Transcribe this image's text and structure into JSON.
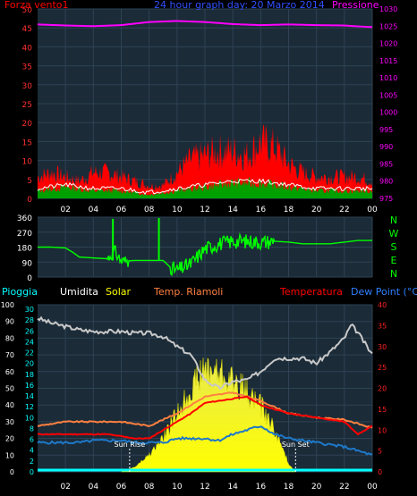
{
  "chart_data": [
    {
      "type": "line",
      "title": "24 hour graph day: 20 Marzo 2014",
      "left_axis_label": "Forza vento1",
      "right_axis_label": "Pressione",
      "left_ticks": [
        0,
        5,
        10,
        15,
        20,
        25,
        30,
        35,
        40,
        45,
        50
      ],
      "right_ticks": [
        975,
        980,
        985,
        990,
        995,
        1000,
        1005,
        1010,
        1015,
        1020,
        1025,
        1030
      ],
      "x_ticks": [
        "02",
        "04",
        "06",
        "08",
        "10",
        "12",
        "14",
        "16",
        "18",
        "20",
        "22",
        "00"
      ],
      "ylim_left": [
        0,
        50
      ],
      "ylim_right": [
        975,
        1030
      ],
      "series": [
        {
          "name": "Pressione",
          "axis": "right",
          "color": "#ff00ff",
          "x": [
            0,
            2,
            4,
            6,
            8,
            10,
            12,
            14,
            16,
            18,
            20,
            22,
            24
          ],
          "values": [
            1025.5,
            1025.2,
            1025,
            1025.3,
            1026.2,
            1026.5,
            1026.2,
            1025.6,
            1025.3,
            1025.5,
            1025.3,
            1025.2,
            1024.7
          ]
        },
        {
          "name": "Forza vento1 (raffica)",
          "axis": "left",
          "color": "#ff0000",
          "x": [
            0,
            1,
            2,
            3,
            4,
            5,
            6,
            7,
            8,
            9,
            10,
            11,
            12,
            13,
            14,
            15,
            16,
            17,
            18,
            19,
            20,
            21,
            22,
            23,
            24
          ],
          "values": [
            5,
            6,
            5,
            4,
            6,
            6,
            5,
            4,
            3,
            3,
            6,
            9,
            10,
            11,
            11,
            10,
            13,
            12,
            8,
            6,
            5,
            5,
            5,
            5,
            4
          ]
        },
        {
          "name": "Forza vento1 (media)",
          "axis": "left",
          "color": "#00a000",
          "x": [
            0,
            2,
            4,
            6,
            8,
            10,
            12,
            14,
            16,
            18,
            20,
            22,
            24
          ],
          "values": [
            2,
            3,
            2,
            2,
            1,
            2,
            3,
            4,
            4,
            3,
            2,
            2,
            2
          ]
        }
      ]
    },
    {
      "type": "line",
      "title": "",
      "left_ticks": [
        0,
        90,
        180,
        270,
        360
      ],
      "right_labels": [
        "N",
        "W",
        "S",
        "E",
        "N"
      ],
      "ylim": [
        0,
        360
      ],
      "series": [
        {
          "name": "Direzione vento",
          "color": "#00ff00",
          "x": [
            0,
            1,
            2,
            2.5,
            3,
            4,
            5,
            5.5,
            6,
            7,
            8,
            9,
            9.5,
            10,
            11,
            12,
            13,
            14,
            15,
            16,
            17,
            18,
            19,
            20,
            21,
            22,
            23,
            24
          ],
          "values": [
            180,
            180,
            175,
            150,
            120,
            115,
            110,
            160,
            95,
            100,
            100,
            100,
            60,
            40,
            80,
            170,
            200,
            215,
            215,
            210,
            215,
            210,
            200,
            200,
            200,
            210,
            220,
            220
          ]
        }
      ]
    },
    {
      "type": "line",
      "labels": [
        "Pioggia",
        "Umidita",
        "Solar",
        "Temp. Riamoli",
        "Temperatura",
        "Dew Point (°C)"
      ],
      "left_ticks": [
        0,
        10,
        20,
        30,
        40,
        50,
        60,
        70,
        80,
        90,
        100
      ],
      "left2_ticks": [
        0,
        2,
        4,
        6,
        8,
        10,
        12,
        14,
        16,
        18,
        20,
        22,
        24,
        26,
        28,
        30
      ],
      "right_ticks": [
        0,
        5,
        10,
        15,
        20,
        25,
        30,
        35,
        40
      ],
      "x_ticks": [
        "02",
        "04",
        "06",
        "08",
        "10",
        "12",
        "14",
        "16",
        "18",
        "20",
        "22",
        "00"
      ],
      "annotations": [
        "Sun Rise",
        "Sun Set"
      ],
      "sunrise_hour": 6.6,
      "sunset_hour": 18.5,
      "series": [
        {
          "name": "Umidita",
          "axis": "left",
          "color": "#c8c8c8",
          "x": [
            0,
            1,
            2,
            3,
            4,
            5,
            6,
            7,
            8,
            9,
            10,
            11,
            12,
            13,
            14,
            15,
            16,
            17,
            18,
            19,
            20,
            21,
            22,
            22.5,
            23,
            24
          ],
          "values": [
            92,
            89,
            87,
            85,
            84,
            84,
            84,
            83,
            83,
            81,
            75,
            70,
            55,
            50,
            54,
            55,
            60,
            68,
            68,
            68,
            65,
            72,
            80,
            88,
            83,
            70
          ]
        },
        {
          "name": "Temperatura",
          "axis": "right",
          "color": "#ff0000",
          "x": [
            0,
            1,
            2,
            3,
            4,
            5,
            6,
            7,
            8,
            9,
            10,
            11,
            12,
            13,
            14,
            15,
            16,
            17,
            18,
            19,
            20,
            21,
            22,
            23,
            24
          ],
          "values": [
            9,
            9,
            9,
            9,
            9,
            9,
            8.5,
            8,
            8,
            10,
            12,
            14,
            16.5,
            17,
            17.5,
            18,
            16,
            15,
            14,
            13.5,
            13,
            12.5,
            12,
            9,
            11
          ]
        },
        {
          "name": "Temp. Riamoli",
          "axis": "right",
          "color": "#ff8040",
          "x": [
            0,
            2,
            4,
            6,
            8,
            10,
            12,
            14,
            16,
            18,
            20,
            22,
            24
          ],
          "values": [
            11,
            12,
            12,
            12,
            11,
            14,
            18,
            19,
            17,
            14,
            13,
            12.5,
            10.5
          ]
        },
        {
          "name": "Dew Point",
          "axis": "right",
          "color": "#1e78c8",
          "x": [
            0,
            1,
            2,
            3,
            4,
            5,
            6,
            7,
            8,
            9,
            10,
            11,
            12,
            13,
            14,
            15,
            16,
            17,
            18,
            19,
            20,
            21,
            22,
            23,
            24
          ],
          "values": [
            7,
            7,
            7,
            7,
            7.5,
            7.5,
            7.5,
            7,
            7,
            7,
            8,
            8,
            8,
            7.5,
            9,
            10,
            11,
            9,
            8,
            7.5,
            7,
            6.5,
            6,
            5,
            4
          ]
        },
        {
          "name": "Solar",
          "axis": "left",
          "color": "#ffff00",
          "x": [
            6,
            7,
            8,
            9,
            10,
            11,
            12,
            13,
            14,
            15,
            16,
            17,
            18,
            18.5
          ],
          "values": [
            0,
            3,
            10,
            20,
            35,
            50,
            62,
            60,
            55,
            48,
            40,
            25,
            5,
            0
          ]
        },
        {
          "name": "Pioggia",
          "axis": "left",
          "color": "#00ffff",
          "x": [
            0,
            24
          ],
          "values": [
            0,
            0
          ]
        }
      ]
    }
  ]
}
